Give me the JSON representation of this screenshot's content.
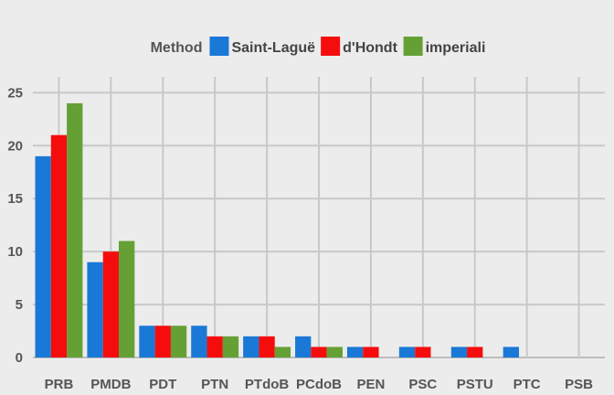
{
  "chart_data": {
    "type": "bar",
    "legend": {
      "title": "Method",
      "placement": "top-center"
    },
    "categories": [
      "PRB",
      "PMDB",
      "PDT",
      "PTN",
      "PTdoB",
      "PCdoB",
      "PEN",
      "PSC",
      "PSTU",
      "PTC",
      "PSB"
    ],
    "series": [
      {
        "name": "Saint-Laguë",
        "color": "#1a78d6",
        "values": [
          19,
          9,
          3,
          3,
          2,
          2,
          1,
          1,
          1,
          1,
          0
        ]
      },
      {
        "name": "d'Hondt",
        "color": "#f50d0d",
        "values": [
          21,
          10,
          3,
          2,
          2,
          1,
          1,
          1,
          1,
          0,
          0
        ]
      },
      {
        "name": "imperiali",
        "color": "#65a035",
        "values": [
          24,
          11,
          3,
          2,
          1,
          1,
          0,
          0,
          0,
          0,
          0
        ]
      }
    ],
    "yticks": [
      0,
      5,
      10,
      15,
      20,
      25
    ],
    "ylim": [
      0,
      26.5
    ],
    "grid": true
  }
}
